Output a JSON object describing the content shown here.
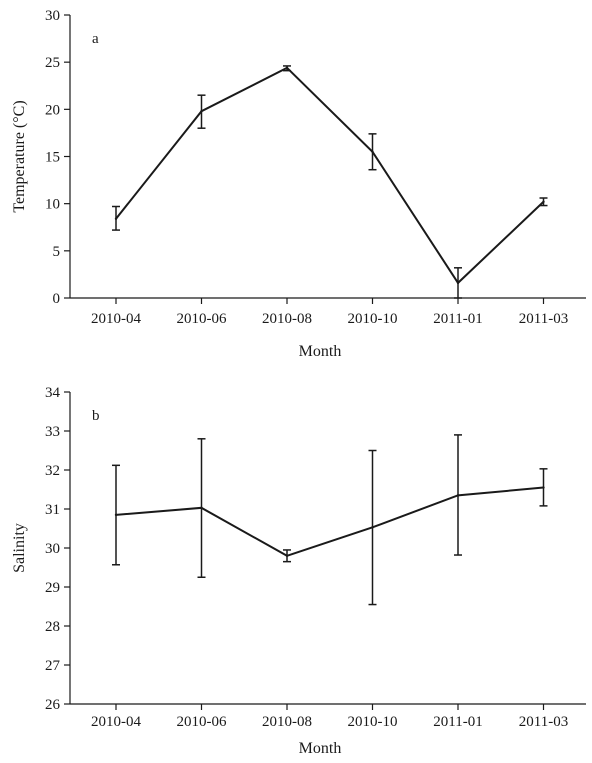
{
  "chart_data": [
    {
      "type": "line",
      "panel_label": "a",
      "xlabel": "Month",
      "ylabel": "Temperature (°C)",
      "categories": [
        "2010-04",
        "2010-06",
        "2010-08",
        "2010-10",
        "2011-01",
        "2011-03"
      ],
      "ylim": [
        0,
        30
      ],
      "yticks": [
        0,
        5,
        10,
        15,
        20,
        25,
        30
      ],
      "values": [
        8.4,
        19.8,
        24.4,
        15.5,
        1.6,
        10.2
      ],
      "error_low": [
        7.2,
        18.0,
        24.1,
        13.6,
        0.0,
        9.8
      ],
      "error_high": [
        9.7,
        21.5,
        24.6,
        17.4,
        3.2,
        10.6
      ],
      "grid": false,
      "color": "#1a1a1a"
    },
    {
      "type": "line",
      "panel_label": "b",
      "xlabel": "Month",
      "ylabel": "Salinity",
      "categories": [
        "2010-04",
        "2010-06",
        "2010-08",
        "2010-10",
        "2011-01",
        "2011-03"
      ],
      "ylim": [
        26,
        34
      ],
      "yticks": [
        26,
        27,
        28,
        29,
        30,
        31,
        32,
        33,
        34
      ],
      "values": [
        30.85,
        31.03,
        29.8,
        30.53,
        31.35,
        31.55
      ],
      "error_low": [
        29.57,
        29.25,
        29.65,
        28.55,
        29.82,
        31.08
      ],
      "error_high": [
        32.12,
        32.8,
        29.95,
        32.5,
        32.9,
        32.03
      ],
      "grid": false,
      "color": "#1a1a1a"
    }
  ]
}
